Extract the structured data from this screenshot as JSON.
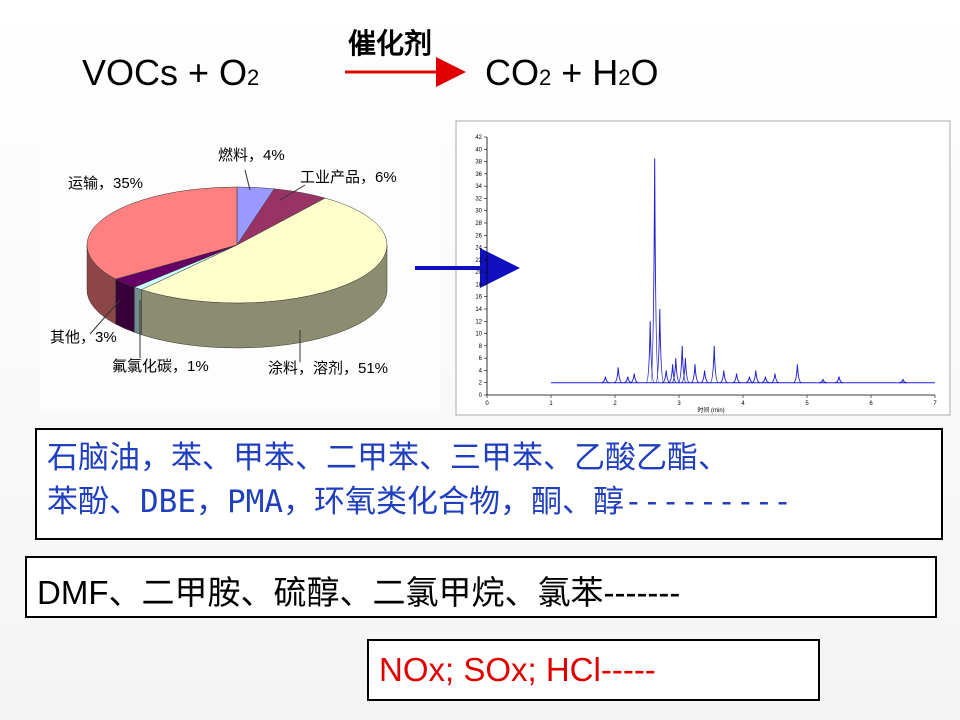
{
  "equation": {
    "catalyst": "催化剂",
    "left": [
      "VOCs + O",
      "2"
    ],
    "right": [
      "CO",
      "2",
      " + H",
      "2",
      "O"
    ]
  },
  "pie_chart": {
    "type": "pie",
    "labels": [
      "燃料，4%",
      "工业产品，6%",
      "涂料，溶剂，51%",
      "氟氯化碳，1%",
      "其他，3%",
      "运输，35%"
    ],
    "values": [
      4,
      6,
      51,
      1,
      3,
      35
    ],
    "colors": [
      "#9999ff",
      "#993366",
      "#ffffcc",
      "#ccffff",
      "#660066",
      "#ff8080"
    ]
  },
  "chromatogram": {
    "type": "peaks",
    "x_label": "时间 (min)",
    "color": "#2020d0",
    "baseline": 2,
    "x": [
      1.85,
      2.05,
      2.2,
      2.3,
      2.55,
      2.62,
      2.7,
      2.8,
      2.9,
      2.95,
      3.05,
      3.1,
      3.25,
      3.4,
      3.55,
      3.7,
      3.9,
      4.1,
      4.2,
      4.35,
      4.5,
      4.85,
      5.25,
      5.5,
      6.5
    ],
    "values": [
      3,
      4.5,
      3,
      3.5,
      12,
      38.5,
      14,
      4,
      5,
      6,
      8,
      6,
      5,
      4,
      8,
      4,
      3.5,
      3,
      4,
      3,
      3.5,
      5,
      2.5,
      3,
      2.5
    ],
    "xlim": [
      0,
      7
    ],
    "ylim": [
      0,
      42
    ],
    "xticks": [
      0,
      1,
      2,
      3,
      4,
      5,
      6,
      7
    ],
    "yticks": [
      0,
      2,
      4,
      6,
      8,
      10,
      12,
      14,
      16,
      18,
      20,
      22,
      24,
      26,
      28,
      30,
      32,
      34,
      36,
      38,
      40,
      42
    ]
  },
  "boxes": {
    "organics": [
      "石脑油，苯、甲苯、二甲苯、三甲苯、乙酸乙酯、",
      "苯酚、DBE，PMA，环氧类化合物，酮、醇---------"
    ],
    "others": "DMF、二甲胺、硫醇、二氯甲烷、氯苯-------",
    "inorganics": "NOx;  SOx;  HCl-----"
  }
}
